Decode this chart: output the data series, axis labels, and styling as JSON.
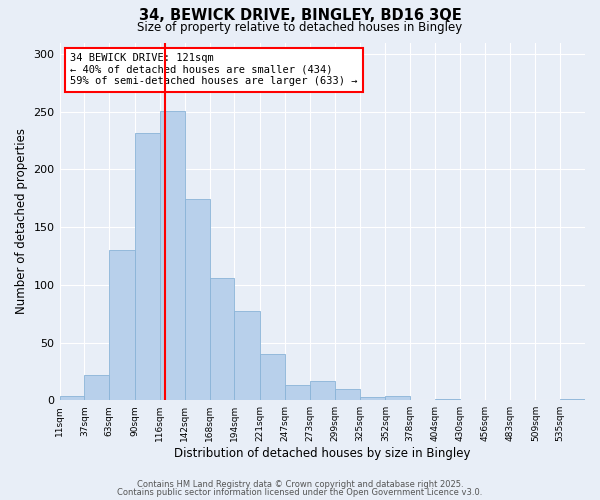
{
  "title": "34, BEWICK DRIVE, BINGLEY, BD16 3QE",
  "subtitle": "Size of property relative to detached houses in Bingley",
  "xlabel": "Distribution of detached houses by size in Bingley",
  "ylabel": "Number of detached properties",
  "bin_labels": [
    "11sqm",
    "37sqm",
    "63sqm",
    "90sqm",
    "116sqm",
    "142sqm",
    "168sqm",
    "194sqm",
    "221sqm",
    "247sqm",
    "273sqm",
    "299sqm",
    "325sqm",
    "352sqm",
    "378sqm",
    "404sqm",
    "430sqm",
    "456sqm",
    "483sqm",
    "509sqm",
    "535sqm"
  ],
  "bar_values": [
    4,
    22,
    130,
    232,
    251,
    174,
    106,
    77,
    40,
    13,
    17,
    10,
    3,
    4,
    0,
    1,
    0,
    0,
    0,
    0,
    1
  ],
  "bar_color": "#b8d0eb",
  "bar_edgecolor": "#8ab4d8",
  "red_line_x": 121,
  "annotation_title": "34 BEWICK DRIVE: 121sqm",
  "annotation_line1": "← 40% of detached houses are smaller (434)",
  "annotation_line2": "59% of semi-detached houses are larger (633) →",
  "ylim": [
    0,
    310
  ],
  "yticks": [
    0,
    50,
    100,
    150,
    200,
    250,
    300
  ],
  "background_color": "#e8eef7",
  "footer1": "Contains HM Land Registry data © Crown copyright and database right 2025.",
  "footer2": "Contains public sector information licensed under the Open Government Licence v3.0.",
  "bin_edges": [
    11,
    37,
    63,
    90,
    116,
    142,
    168,
    194,
    221,
    247,
    273,
    299,
    325,
    352,
    378,
    404,
    430,
    456,
    483,
    509,
    535,
    561
  ]
}
